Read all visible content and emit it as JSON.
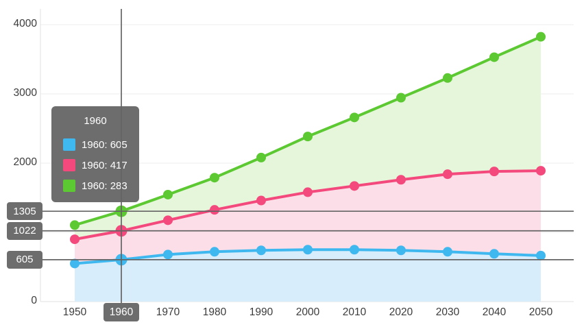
{
  "chart_data": {
    "type": "area",
    "stacked": true,
    "title": "",
    "xlabel": "",
    "ylabel": "",
    "grid": true,
    "legend": "none (values shown in hover tooltip)",
    "x": [
      1950,
      1960,
      1970,
      1980,
      1990,
      2000,
      2010,
      2020,
      2030,
      2040,
      2050
    ],
    "x_tick_labels": [
      "1950",
      "1960",
      "1970",
      "1980",
      "1990",
      "2000",
      "2010",
      "2020",
      "2030",
      "2040",
      "2050"
    ],
    "series": [
      {
        "name": "blue",
        "color": "#3fb8ef",
        "fill": "#d7edfb",
        "values": [
          550,
          605,
          680,
          720,
          740,
          750,
          750,
          740,
          720,
          690,
          665
        ],
        "stack_values": [
          550,
          605,
          680,
          720,
          740,
          750,
          750,
          740,
          720,
          690,
          665
        ]
      },
      {
        "name": "pink",
        "color": "#f3497c",
        "fill": "#fcdee8",
        "values": [
          350,
          417,
          495,
          605,
          720,
          830,
          920,
          1020,
          1120,
          1190,
          1225
        ],
        "stack_values": [
          900,
          1022,
          1175,
          1325,
          1460,
          1580,
          1670,
          1760,
          1840,
          1880,
          1890
        ]
      },
      {
        "name": "green",
        "color": "#5cc832",
        "fill": "#e6f6db",
        "values": [
          205,
          283,
          370,
          465,
          620,
          805,
          990,
          1185,
          1390,
          1650,
          1935
        ],
        "stack_values": [
          1105,
          1305,
          1545,
          1790,
          2080,
          2385,
          2660,
          2945,
          3230,
          3530,
          3825
        ]
      }
    ],
    "ylim": [
      0,
      4200
    ],
    "y_ticks": [
      0,
      1000,
      2000,
      3000,
      4000
    ],
    "y_tick_labels_visible": [
      {
        "text": "4000",
        "value": 4000
      },
      {
        "text": "3000",
        "value": 3000
      },
      {
        "text": "2000",
        "value": 2000
      },
      {
        "text": "0",
        "value": 0
      }
    ]
  },
  "crosshair": {
    "year": 1960,
    "x_bubble_label": "1960",
    "y_bubbles": [
      {
        "text": "1305",
        "value": 1305
      },
      {
        "text": "1022",
        "value": 1022
      },
      {
        "text": "605",
        "value": 605
      }
    ]
  },
  "tooltip": {
    "title": "1960",
    "rows": [
      {
        "label": "1960: 605",
        "color": "#3fb8ef"
      },
      {
        "label": "1960: 417",
        "color": "#f3497c"
      },
      {
        "label": "1960: 283",
        "color": "#5cc832"
      }
    ]
  },
  "colors": {
    "tooltip_bg": "#6d6d6d",
    "bubble_bg": "#6d6d6d",
    "crosshair_line": "#646464",
    "gridline": "#ededed",
    "axis_line": "#e2e2e2",
    "axis_text": "#3b3b3b"
  }
}
